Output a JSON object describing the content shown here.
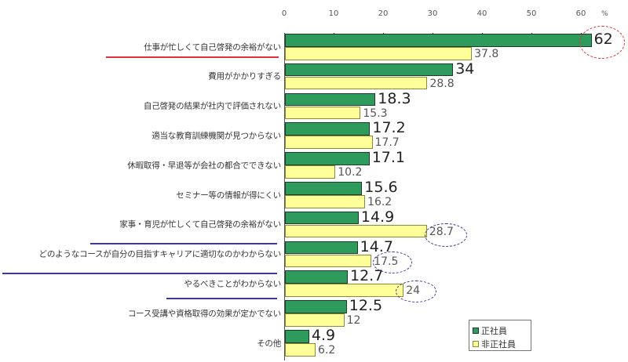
{
  "chart_data": {
    "type": "bar",
    "orientation": "horizontal",
    "title": "",
    "xlabel": "",
    "ylabel": "",
    "unit": "%",
    "xlim": [
      0,
      65
    ],
    "x_ticks": [
      0,
      10,
      20,
      30,
      40,
      50,
      60
    ],
    "grid": false,
    "legend_position": "bottom-right",
    "categories": [
      "仕事が忙しくて自己啓発の余裕がない",
      "費用がかかりすぎる",
      "自己啓発の結果が社内で評価されない",
      "適当な教育訓練機関が見つからない",
      "休暇取得・早退等が会社の都合でできない",
      "セミナー等の情報が得にくい",
      "家事・育児が忙しくて自己啓発の余裕がない",
      "どのようなコースが自分の目指すキャリアに適切なのかわからない",
      "やるべきことがわからない",
      "コース受講や資格取得の効果が定かでない",
      "その他"
    ],
    "series": [
      {
        "name": "正社員",
        "color": "#2e9a5c",
        "values": [
          62,
          34,
          18.3,
          17.2,
          17.1,
          15.6,
          14.9,
          14.7,
          12.7,
          12.5,
          4.9
        ]
      },
      {
        "name": "非正社員",
        "color": "#ffff99",
        "values": [
          37.8,
          28.8,
          15.3,
          17.7,
          10.2,
          16.2,
          28.7,
          17.5,
          24,
          12,
          6.2
        ]
      }
    ],
    "value_labels": {
      "正社員": [
        "62",
        "34",
        "18.3",
        "17.2",
        "17.1",
        "15.6",
        "14.9",
        "14.7",
        "12.7",
        "12.5",
        "4.9"
      ],
      "非正社員": [
        "37.8",
        "28.8",
        "15.3",
        "17.7",
        "10.2",
        "16.2",
        "28.7",
        "17.5",
        "24",
        "12",
        "6.2"
      ]
    },
    "annotations": [
      {
        "type": "underline",
        "color": "#e0303a",
        "category_index": 0
      },
      {
        "type": "underline",
        "color": "#3a3a9a",
        "category_index": 6
      },
      {
        "type": "underline",
        "color": "#3a3a9a",
        "category_index": 7
      },
      {
        "type": "underline",
        "color": "#3a3a9a",
        "category_index": 8
      },
      {
        "type": "circle",
        "color": "#e0303a",
        "series": "正社員",
        "category_index": 0
      },
      {
        "type": "circle",
        "color": "#3a3a9a",
        "series": "非正社員",
        "category_index": 6
      },
      {
        "type": "circle",
        "color": "#3a3a9a",
        "series": "非正社員",
        "category_index": 7
      },
      {
        "type": "circle",
        "color": "#3a3a9a",
        "series": "非正社員",
        "category_index": 8
      }
    ]
  },
  "axis": {
    "ticks": [
      "0",
      "10",
      "20",
      "30",
      "40",
      "50",
      "60"
    ],
    "unit": "%"
  },
  "legend": {
    "items": [
      {
        "label": "正社員",
        "color": "#2e9a5c"
      },
      {
        "label": "非正社員",
        "color": "#ffff99"
      }
    ]
  }
}
